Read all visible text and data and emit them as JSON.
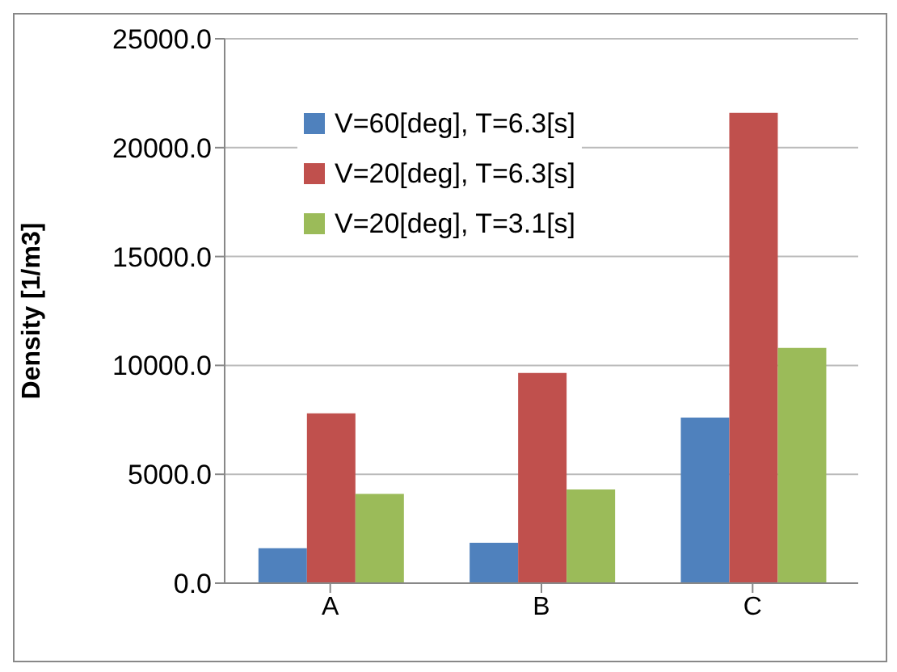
{
  "chart_data": {
    "type": "bar",
    "ylabel": "Density [1/m3]",
    "categories": [
      "A",
      "B",
      "C"
    ],
    "series": [
      {
        "name": "V=60[deg], T=6.3[s]",
        "color": "#4f81bd",
        "values": [
          1600,
          1850,
          7600
        ]
      },
      {
        "name": "V=20[deg], T=6.3[s]",
        "color": "#c0504d",
        "values": [
          7800,
          9650,
          21600
        ]
      },
      {
        "name": "V=20[deg], T=3.1[s]",
        "color": "#9bbb59",
        "values": [
          4100,
          4300,
          10800
        ]
      }
    ],
    "ylim": [
      0,
      25000
    ],
    "yticks": [
      {
        "value": 0,
        "label": "0.0"
      },
      {
        "value": 5000,
        "label": "5000.0"
      },
      {
        "value": 10000,
        "label": "10000.0"
      },
      {
        "value": 15000,
        "label": "15000.0"
      },
      {
        "value": 20000,
        "label": "20000.0"
      },
      {
        "value": 25000,
        "label": "25000.0"
      }
    ],
    "grid": "y",
    "legend": "top left"
  }
}
